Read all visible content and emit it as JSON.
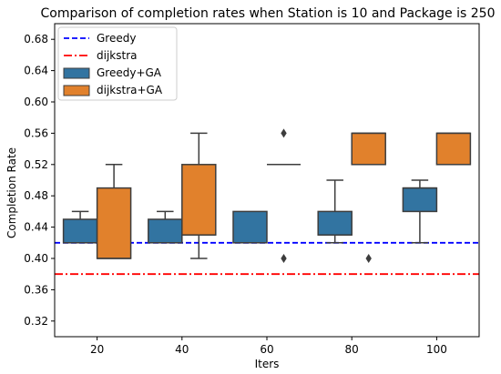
{
  "chart_data": {
    "type": "box",
    "title": "Comparison of completion rates when Station is 10 and Package is 250",
    "xlabel": "Iters",
    "ylabel": "Completion Rate",
    "ylim": [
      0.3,
      0.7
    ],
    "yticks": [
      "0.32",
      "0.36",
      "0.40",
      "0.44",
      "0.48",
      "0.52",
      "0.56",
      "0.60",
      "0.64",
      "0.68"
    ],
    "categories": [
      "20",
      "40",
      "60",
      "80",
      "100"
    ],
    "legend_position": "top-left",
    "reference_lines": [
      {
        "name": "Greedy",
        "value": 0.42,
        "color": "#0000ff",
        "style": "dashed"
      },
      {
        "name": "dijkstra",
        "value": 0.38,
        "color": "#ff0000",
        "style": "dashdot"
      }
    ],
    "series": [
      {
        "name": "Greedy+GA",
        "color": "#3274a1",
        "boxes": [
          {
            "whislo": 0.42,
            "q1": 0.42,
            "med": 0.42,
            "q3": 0.45,
            "whishi": 0.46,
            "fliers": []
          },
          {
            "whislo": 0.42,
            "q1": 0.42,
            "med": 0.42,
            "q3": 0.45,
            "whishi": 0.46,
            "fliers": []
          },
          {
            "whislo": 0.42,
            "q1": 0.42,
            "med": 0.42,
            "q3": 0.46,
            "whishi": 0.46,
            "fliers": []
          },
          {
            "whislo": 0.42,
            "q1": 0.43,
            "med": 0.43,
            "q3": 0.46,
            "whishi": 0.5,
            "fliers": []
          },
          {
            "whislo": 0.42,
            "q1": 0.46,
            "med": 0.49,
            "q3": 0.49,
            "whishi": 0.5,
            "fliers": []
          }
        ]
      },
      {
        "name": "dijkstra+GA",
        "color": "#e1812c",
        "boxes": [
          {
            "whislo": 0.4,
            "q1": 0.4,
            "med": 0.4,
            "q3": 0.49,
            "whishi": 0.52,
            "fliers": []
          },
          {
            "whislo": 0.4,
            "q1": 0.43,
            "med": 0.43,
            "q3": 0.52,
            "whishi": 0.56,
            "fliers": []
          },
          {
            "whislo": 0.52,
            "q1": 0.52,
            "med": 0.52,
            "q3": 0.52,
            "whishi": 0.52,
            "fliers": [
              0.56,
              0.4
            ]
          },
          {
            "whislo": 0.52,
            "q1": 0.52,
            "med": 0.56,
            "q3": 0.56,
            "whishi": 0.56,
            "fliers": [
              0.4
            ]
          },
          {
            "whislo": 0.52,
            "q1": 0.52,
            "med": 0.56,
            "q3": 0.56,
            "whishi": 0.56,
            "fliers": []
          }
        ]
      }
    ]
  }
}
